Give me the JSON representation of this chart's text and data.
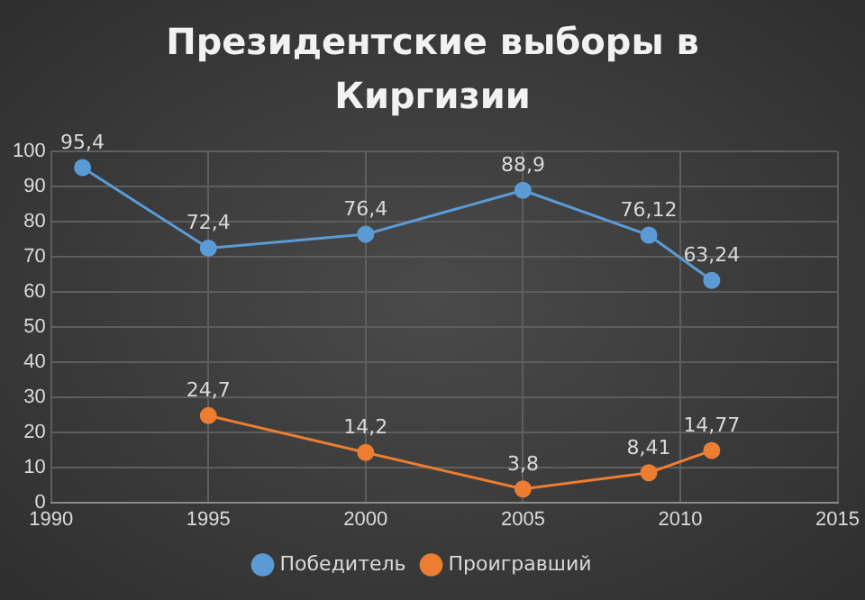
{
  "chart_data": {
    "type": "line",
    "title": "Президентские  выборы в Киргизии",
    "xlim": [
      1990,
      2015
    ],
    "xticks": [
      1990,
      1995,
      2000,
      2005,
      2010,
      2015
    ],
    "ylim": [
      0,
      100
    ],
    "yticks": [
      0,
      10,
      20,
      30,
      40,
      50,
      60,
      70,
      80,
      90,
      100
    ],
    "grid": true,
    "legend": "bottom",
    "marker": "circle",
    "line_style": "solid",
    "series": [
      {
        "name": "Победитель",
        "color": "#5b9bd5",
        "x": [
          1991,
          1995,
          2000,
          2005,
          2009,
          2011
        ],
        "values": [
          95.4,
          72.4,
          76.4,
          88.9,
          76.12,
          63.24
        ],
        "value_labels": [
          "95,4",
          "72,4",
          "76,4",
          "88,9",
          "76,12",
          "63,24"
        ]
      },
      {
        "name": "Проигравший",
        "color": "#ed7d31",
        "x": [
          1995,
          2000,
          2005,
          2009,
          2011
        ],
        "values": [
          24.7,
          14.2,
          3.8,
          8.41,
          14.77
        ],
        "value_labels": [
          "24,7",
          "14,2",
          "3,8",
          "8,41",
          "14,77"
        ]
      }
    ]
  }
}
